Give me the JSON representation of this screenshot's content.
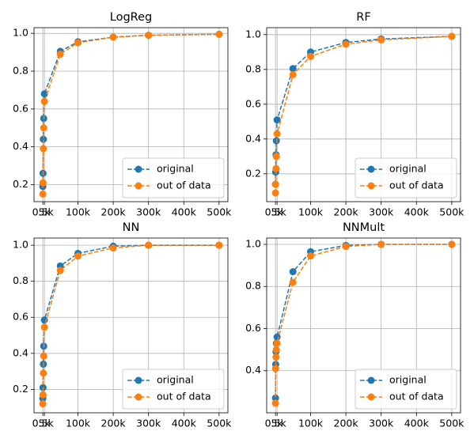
{
  "chart_data": [
    {
      "type": "line",
      "title": "LogReg",
      "x": [
        500,
        1000,
        2000,
        3000,
        5000,
        50000,
        100000,
        200000,
        300000,
        500000
      ],
      "series": [
        {
          "name": "original",
          "color": "#1f77b4",
          "values": [
            0.19,
            0.26,
            0.44,
            0.55,
            0.68,
            0.905,
            0.955,
            0.98,
            0.99,
            0.995
          ]
        },
        {
          "name": "out of data",
          "color": "#ff7f0e",
          "values": [
            0.15,
            0.21,
            0.39,
            0.5,
            0.64,
            0.89,
            0.95,
            0.98,
            0.99,
            0.995
          ]
        }
      ],
      "xlim": [
        -24475,
        524975
      ],
      "xticks": [
        {
          "value": 500,
          "label": "0.5k"
        },
        {
          "value": 5000,
          "label": "5k"
        },
        {
          "value": 100000,
          "label": "100k"
        },
        {
          "value": 200000,
          "label": "200k"
        },
        {
          "value": 300000,
          "label": "300k"
        },
        {
          "value": 400000,
          "label": "400k"
        },
        {
          "value": 500000,
          "label": "500k"
        }
      ],
      "ylim": [
        0.11,
        1.03
      ],
      "yticks": [
        0.2,
        0.4,
        0.6,
        0.8,
        {
          "value": 1,
          "label": "1.0"
        }
      ],
      "grid": true,
      "legend": "lower right"
    },
    {
      "type": "line",
      "title": "RF",
      "x": [
        500,
        1000,
        2000,
        3000,
        5000,
        50000,
        100000,
        200000,
        300000,
        500000
      ],
      "series": [
        {
          "name": "original",
          "color": "#1f77b4",
          "values": [
            0.14,
            0.21,
            0.31,
            0.39,
            0.51,
            0.805,
            0.9,
            0.955,
            0.975,
            0.99
          ]
        },
        {
          "name": "out of data",
          "color": "#ff7f0e",
          "values": [
            0.09,
            0.14,
            0.23,
            0.3,
            0.43,
            0.77,
            0.875,
            0.945,
            0.97,
            0.99
          ]
        }
      ],
      "xlim": [
        -24475,
        524975
      ],
      "xticks": [
        {
          "value": 500,
          "label": "0.5k"
        },
        {
          "value": 5000,
          "label": "5k"
        },
        {
          "value": 100000,
          "label": "100k"
        },
        {
          "value": 200000,
          "label": "200k"
        },
        {
          "value": 300000,
          "label": "300k"
        },
        {
          "value": 400000,
          "label": "400k"
        },
        {
          "value": 500000,
          "label": "500k"
        }
      ],
      "ylim": [
        0.04,
        1.04
      ],
      "yticks": [
        0.2,
        0.4,
        0.6,
        0.8,
        {
          "value": 1,
          "label": "1.0"
        }
      ],
      "grid": true,
      "legend": "lower right"
    },
    {
      "type": "line",
      "title": "NN",
      "x": [
        500,
        1000,
        2000,
        3000,
        5000,
        50000,
        100000,
        200000,
        300000,
        500000
      ],
      "series": [
        {
          "name": "original",
          "color": "#1f77b4",
          "values": [
            0.15,
            0.21,
            0.34,
            0.44,
            0.585,
            0.885,
            0.955,
            0.995,
            1.0,
            1.0
          ]
        },
        {
          "name": "out of data",
          "color": "#ff7f0e",
          "values": [
            0.12,
            0.17,
            0.29,
            0.385,
            0.545,
            0.86,
            0.94,
            0.985,
            1.0,
            1.0
          ]
        }
      ],
      "xlim": [
        -24475,
        524975
      ],
      "xticks": [
        {
          "value": 500,
          "label": "0.5k"
        },
        {
          "value": 5000,
          "label": "5k"
        },
        {
          "value": 100000,
          "label": "100k"
        },
        {
          "value": 200000,
          "label": "200k"
        },
        {
          "value": 300000,
          "label": "300k"
        },
        {
          "value": 400000,
          "label": "400k"
        },
        {
          "value": 500000,
          "label": "500k"
        }
      ],
      "ylim": [
        0.07,
        1.04
      ],
      "yticks": [
        0.2,
        0.4,
        0.6,
        0.8,
        {
          "value": 1,
          "label": "1.0"
        }
      ],
      "grid": true,
      "legend": "lower right"
    },
    {
      "type": "line",
      "title": "NNMult",
      "x": [
        500,
        1000,
        2000,
        3000,
        5000,
        50000,
        100000,
        200000,
        300000,
        500000
      ],
      "series": [
        {
          "name": "original",
          "color": "#1f77b4",
          "values": [
            0.27,
            0.43,
            0.49,
            0.53,
            0.56,
            0.87,
            0.965,
            0.995,
            1.0,
            1.0
          ]
        },
        {
          "name": "out of data",
          "color": "#ff7f0e",
          "values": [
            0.245,
            0.41,
            0.465,
            0.5,
            0.53,
            0.82,
            0.945,
            0.99,
            1.0,
            1.0
          ]
        }
      ],
      "xlim": [
        -24475,
        524975
      ],
      "xticks": [
        {
          "value": 500,
          "label": "0.5k"
        },
        {
          "value": 5000,
          "label": "5k"
        },
        {
          "value": 100000,
          "label": "100k"
        },
        {
          "value": 200000,
          "label": "200k"
        },
        {
          "value": 300000,
          "label": "300k"
        },
        {
          "value": 400000,
          "label": "400k"
        },
        {
          "value": 500000,
          "label": "500k"
        }
      ],
      "ylim": [
        0.2,
        1.03
      ],
      "yticks": [
        0.4,
        0.6,
        0.8,
        {
          "value": 1,
          "label": "1.0"
        }
      ],
      "grid": true,
      "legend": "lower right"
    }
  ]
}
